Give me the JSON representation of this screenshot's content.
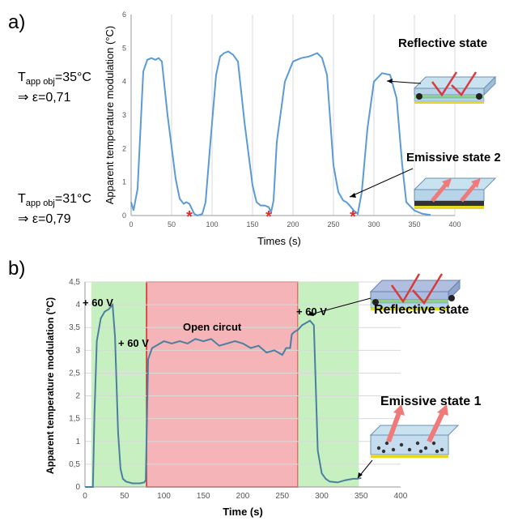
{
  "panels": {
    "a": "a)",
    "b": "b)"
  },
  "side_notes": [
    {
      "symbol": "T",
      "subscript": "app obj",
      "equation": "=35°C",
      "arrow": "⇒",
      "result": "ε=0,71"
    },
    {
      "symbol": "T",
      "subscript": "app obj",
      "equation": "=31°C",
      "arrow": "⇒",
      "result": "ε=0,79"
    }
  ],
  "colors": {
    "line_a": "#5b9bd5",
    "line_b": "#4a7fa0",
    "green_region": "#c6f0c0",
    "red_region": "#f4b4b8",
    "marker": "#e8282b",
    "grid": "#d9d9d9"
  },
  "icons": [
    "reflective-device-icon",
    "emissive-device-icon",
    "asterisk-marker-icon"
  ],
  "chart_data": [
    {
      "type": "line",
      "xlabel": "Times (s)",
      "ylabel": "Apparent temperature modulation (°C)",
      "xlim": [
        0,
        400
      ],
      "ylim": [
        0,
        6
      ],
      "x_ticks": [
        "0",
        "50",
        "100",
        "150",
        "200",
        "250",
        "300",
        "350",
        "400"
      ],
      "y_ticks": [
        "0",
        "1",
        "2",
        "3",
        "4",
        "5",
        "6"
      ],
      "grid": "vertical",
      "series": [
        {
          "x": [
            0,
            3,
            8,
            15,
            20,
            25,
            30,
            34,
            38,
            45,
            55,
            60,
            65,
            68,
            72,
            78,
            82,
            88,
            92,
            98,
            105,
            110,
            115,
            120,
            126,
            132,
            140,
            150,
            155,
            160,
            165,
            170,
            173,
            176,
            180,
            190,
            200,
            210,
            220,
            230,
            236,
            242,
            250,
            256,
            262,
            266,
            270,
            275,
            280,
            285,
            292,
            300,
            310,
            320,
            328,
            335,
            340,
            350,
            360,
            370
          ],
          "y": [
            0.4,
            0.15,
            0.8,
            4.3,
            4.65,
            4.7,
            4.65,
            4.7,
            4.6,
            3.0,
            1.1,
            0.5,
            0.35,
            0.4,
            0.35,
            0.05,
            0.0,
            0.05,
            0.4,
            2.2,
            4.2,
            4.75,
            4.85,
            4.9,
            4.8,
            4.6,
            2.8,
            0.9,
            0.4,
            0.3,
            0.3,
            0.25,
            0.1,
            0.45,
            2.2,
            4.0,
            4.6,
            4.7,
            4.75,
            4.85,
            4.7,
            4.2,
            1.5,
            0.7,
            0.45,
            0.4,
            0.3,
            0.15,
            0.05,
            0.7,
            2.6,
            4.0,
            4.25,
            4.2,
            3.5,
            1.5,
            0.4,
            0.15,
            0.05,
            0.02
          ]
        }
      ],
      "markers_at_x": [
        72,
        170,
        274
      ],
      "annotations": [
        {
          "text": "Reflective state",
          "point": [
            326,
            4.2
          ]
        },
        {
          "text": "Emissive state 2",
          "point": [
            270,
            0.4
          ]
        }
      ]
    },
    {
      "type": "line",
      "xlabel": "Time (s)",
      "ylabel": "Apparent temperature modulation (°C)",
      "xlim": [
        0,
        400
      ],
      "ylim": [
        0,
        4.5
      ],
      "x_ticks": [
        "0",
        "50",
        "100",
        "150",
        "200",
        "250",
        "300",
        "350",
        "400"
      ],
      "y_ticks": [
        "0",
        "0,5",
        "1",
        "1,5",
        "2",
        "2,5",
        "3",
        "3,5",
        "4",
        "4,5"
      ],
      "grid": "horizontal",
      "regions": [
        {
          "from": 8,
          "to": 78,
          "kind": "green"
        },
        {
          "from": 78,
          "to": 270,
          "kind": "red"
        },
        {
          "from": 270,
          "to": 347,
          "kind": "green"
        }
      ],
      "series": [
        {
          "x": [
            0,
            5,
            10,
            12,
            15,
            20,
            25,
            30,
            35,
            38,
            42,
            45,
            48,
            52,
            60,
            70,
            75,
            77,
            80,
            85,
            90,
            100,
            110,
            120,
            130,
            140,
            150,
            160,
            170,
            180,
            190,
            200,
            210,
            220,
            230,
            240,
            250,
            255,
            260,
            262,
            265,
            270,
            275,
            280,
            285,
            290,
            295,
            300,
            305,
            310,
            320,
            330,
            340,
            345,
            350
          ],
          "y": [
            0.0,
            0.0,
            0.0,
            1.6,
            3.2,
            3.7,
            3.85,
            3.9,
            4.0,
            3.3,
            1.2,
            0.4,
            0.18,
            0.12,
            0.08,
            0.08,
            0.1,
            0.15,
            2.8,
            3.05,
            3.1,
            3.2,
            3.15,
            3.2,
            3.15,
            3.25,
            3.2,
            3.25,
            3.1,
            3.15,
            3.2,
            3.15,
            3.05,
            3.1,
            2.95,
            3.0,
            2.9,
            3.05,
            3.05,
            3.35,
            3.4,
            3.45,
            3.55,
            3.6,
            3.65,
            3.55,
            0.8,
            0.3,
            0.18,
            0.12,
            0.1,
            0.15,
            0.18,
            0.18,
            0.2
          ]
        }
      ],
      "annotations": [
        {
          "text": "+ 60 V",
          "point": [
            10,
            4.0
          ]
        },
        {
          "text": "+ 60 V",
          "point": [
            78,
            3.1
          ]
        },
        {
          "text": "Open circut",
          "point": [
            170,
            3.3
          ]
        },
        {
          "text": "+ 60 V",
          "point": [
            285,
            3.65
          ]
        },
        {
          "text": "Reflective state",
          "point": [
            290,
            3.65
          ]
        },
        {
          "text": "Emissive state 1",
          "point": [
            350,
            0.2
          ]
        }
      ]
    }
  ]
}
